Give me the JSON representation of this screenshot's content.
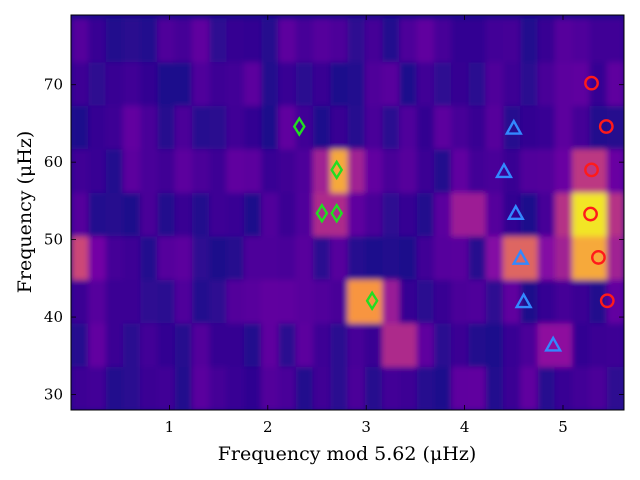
{
  "chart_data": {
    "type": "scatter",
    "background": "heatmap",
    "title": "",
    "xlabel": "Frequency mod 5.62 (μHz)",
    "ylabel": "Frequency (μHz)",
    "xlim": [
      0,
      5.62
    ],
    "ylim": [
      28,
      79
    ],
    "xticks": [
      1,
      2,
      3,
      4,
      5
    ],
    "yticks": [
      30,
      40,
      50,
      60,
      70
    ],
    "grid": false,
    "legend": "none",
    "colormap": "plasma",
    "heatmap": {
      "x_bins": 32,
      "y_bins": 9,
      "y_bin_width": 5.62,
      "y_start": 28,
      "hot_spots": [
        {
          "x": 2.72,
          "y": 59,
          "level": 0.8
        },
        {
          "x": 3.05,
          "y": 42,
          "level": 0.75
        },
        {
          "x": 5.28,
          "y": 53.5,
          "level": 0.95
        },
        {
          "x": 5.32,
          "y": 48,
          "level": 0.8
        },
        {
          "x": 4.6,
          "y": 48,
          "level": 0.6
        },
        {
          "x": 0.1,
          "y": 48,
          "level": 0.5
        },
        {
          "x": 2.7,
          "y": 53.5,
          "level": 0.4
        },
        {
          "x": 3.4,
          "y": 36.5,
          "level": 0.4
        },
        {
          "x": 4.05,
          "y": 53.5,
          "level": 0.35
        },
        {
          "x": 5.25,
          "y": 59,
          "level": 0.45
        },
        {
          "x": 4.85,
          "y": 36.5,
          "level": 0.3
        }
      ]
    },
    "series": [
      {
        "marker": "diamond",
        "color": "#22dd22",
        "points": [
          [
            2.32,
            64.6
          ],
          [
            2.7,
            59.0
          ],
          [
            2.55,
            53.4
          ],
          [
            2.7,
            53.4
          ],
          [
            3.06,
            42.1
          ]
        ]
      },
      {
        "marker": "triangle",
        "color": "#3388ff",
        "points": [
          [
            4.5,
            64.4
          ],
          [
            4.4,
            58.8
          ],
          [
            4.52,
            53.4
          ],
          [
            4.57,
            47.6
          ],
          [
            4.6,
            42.0
          ],
          [
            4.9,
            36.4
          ]
        ]
      },
      {
        "marker": "circle",
        "color": "#ff1a1a",
        "points": [
          [
            5.29,
            70.2
          ],
          [
            5.44,
            64.6
          ],
          [
            5.29,
            59.0
          ],
          [
            5.28,
            53.3
          ],
          [
            5.36,
            47.7
          ],
          [
            5.45,
            42.1
          ]
        ]
      }
    ]
  }
}
